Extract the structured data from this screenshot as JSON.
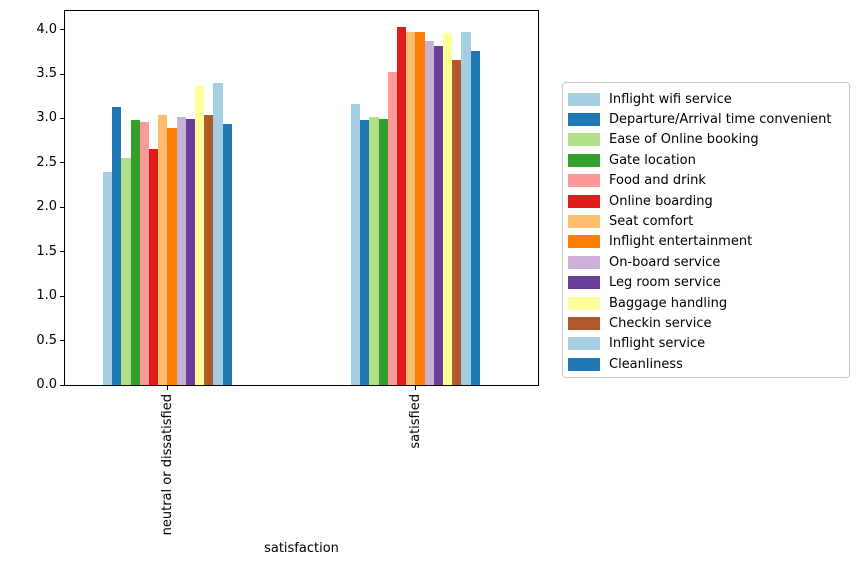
{
  "chart_data": {
    "type": "bar",
    "title": "",
    "xlabel": "satisfaction",
    "ylabel": "",
    "categories": [
      "neutral or dissatisfied",
      "satisfied"
    ],
    "ylim": [
      0,
      4.21
    ],
    "yticks": [
      "0.0",
      "0.5",
      "1.0",
      "1.5",
      "2.0",
      "2.5",
      "3.0",
      "3.5",
      "4.0"
    ],
    "grid": false,
    "legend_position": "center-right-outside",
    "series": [
      {
        "name": "Inflight wifi service",
        "color": "#a6cee3",
        "values": [
          2.4,
          3.16
        ]
      },
      {
        "name": "Departure/Arrival time convenient",
        "color": "#1f78b4",
        "values": [
          3.13,
          2.98
        ]
      },
      {
        "name": "Ease of Online booking",
        "color": "#b2df8a",
        "values": [
          2.56,
          3.02
        ]
      },
      {
        "name": "Gate location",
        "color": "#33a02c",
        "values": [
          2.98,
          2.99
        ]
      },
      {
        "name": "Food and drink",
        "color": "#fb9a99",
        "values": [
          2.96,
          3.52
        ]
      },
      {
        "name": "Online boarding",
        "color": "#e31a1c",
        "values": [
          2.66,
          4.03
        ]
      },
      {
        "name": "Seat comfort",
        "color": "#fdbf6f",
        "values": [
          3.04,
          3.97
        ]
      },
      {
        "name": "Inflight entertainment",
        "color": "#ff7f00",
        "values": [
          2.89,
          3.97
        ]
      },
      {
        "name": "On-board service",
        "color": "#cab2d6",
        "values": [
          3.02,
          3.87
        ]
      },
      {
        "name": "Leg room service",
        "color": "#6a3d9a",
        "values": [
          2.99,
          3.82
        ]
      },
      {
        "name": "Baggage handling",
        "color": "#ffff99",
        "values": [
          3.37,
          3.96
        ]
      },
      {
        "name": "Checkin service",
        "color": "#b15928",
        "values": [
          3.04,
          3.66
        ]
      },
      {
        "name": "Inflight service",
        "color": "#a6cee3",
        "values": [
          3.4,
          3.97
        ]
      },
      {
        "name": "Cleanliness",
        "color": "#1f78b4",
        "values": [
          2.94,
          3.76
        ]
      }
    ]
  }
}
